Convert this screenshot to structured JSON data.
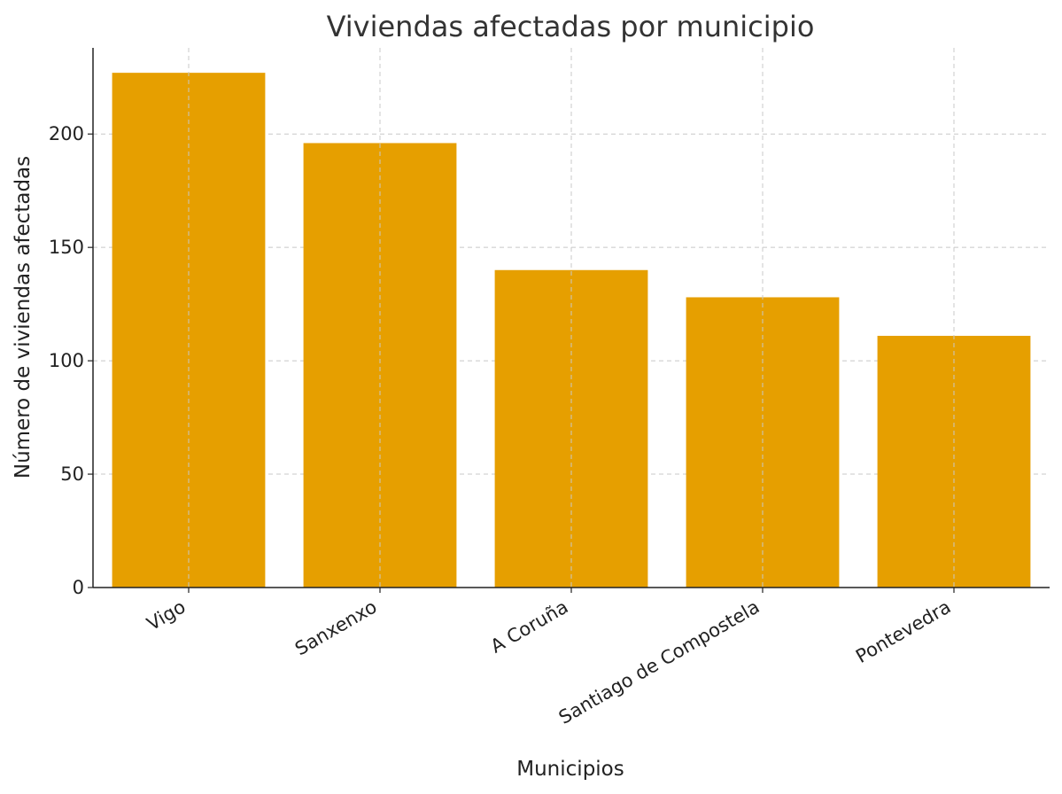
{
  "chart_data": {
    "type": "bar",
    "title": "Viviendas afectadas por municipio",
    "xlabel": "Municipios",
    "ylabel": "Número de viviendas afectadas",
    "categories": [
      "Vigo",
      "Sanxenxo",
      "A Coruña",
      "Santiago de Compostela",
      "Pontevedra"
    ],
    "values": [
      227,
      196,
      140,
      128,
      111
    ],
    "ylim": [
      0,
      238
    ],
    "yticks": [
      0,
      50,
      100,
      150,
      200
    ],
    "grid": true,
    "bar_color": "#E69F00"
  }
}
